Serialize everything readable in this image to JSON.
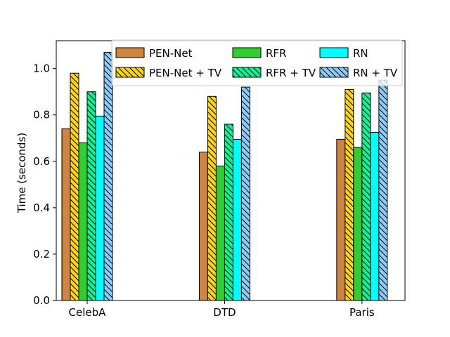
{
  "chart_data": {
    "type": "bar",
    "title": "",
    "xlabel": "",
    "ylabel": "Time (seconds)",
    "ylim": [
      0,
      1.12
    ],
    "yticks": [
      "0.0",
      "0.2",
      "0.4",
      "0.6",
      "0.8",
      "1.0"
    ],
    "categories": [
      "CelebA",
      "DTD",
      "Paris"
    ],
    "legend_position": "top",
    "series": [
      {
        "name": "PEN-Net",
        "color": "#cd853f",
        "hatch": false,
        "values": [
          0.74,
          0.64,
          0.695
        ]
      },
      {
        "name": "PEN-Net + TV",
        "color": "#ffd700",
        "hatch": true,
        "values": [
          0.98,
          0.88,
          0.91
        ]
      },
      {
        "name": "RFR",
        "color": "#32cd32",
        "hatch": false,
        "values": [
          0.68,
          0.58,
          0.66
        ]
      },
      {
        "name": "RFR + TV",
        "color": "#00fa9a",
        "hatch": true,
        "values": [
          0.9,
          0.76,
          0.895
        ]
      },
      {
        "name": "RN",
        "color": "#00ffff",
        "hatch": false,
        "values": [
          0.795,
          0.695,
          0.725
        ]
      },
      {
        "name": "RN + TV",
        "color": "#87cefa",
        "hatch": true,
        "values": [
          1.07,
          0.92,
          0.95
        ]
      }
    ]
  }
}
